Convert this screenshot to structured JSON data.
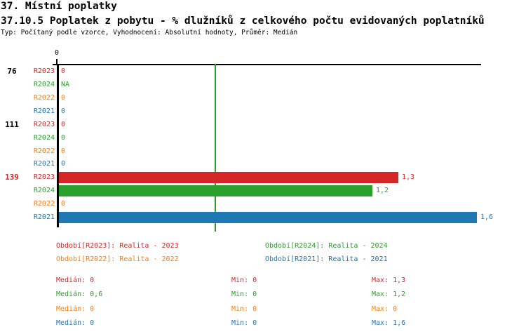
{
  "header": {
    "title1": "37. Místní poplatky",
    "title2": "37.10.5 Poplatek z pobytu - % dlužníků z celkového počtu evidovaných poplatníků",
    "meta": "Typ: Počítaný podle vzorce, Vyhodnocení: Absolutní hodnoty, Průměr: Medián"
  },
  "chart_data": {
    "type": "bar",
    "orientation": "horizontal",
    "title": "37.10.5 Poplatek z pobytu - % dlužníků z celkového počtu evidovaných poplatníků",
    "groups": [
      "76",
      "111",
      "139"
    ],
    "highlighted_group": "139",
    "highlight_color": "#d62728",
    "group_label_color": "#000000",
    "series": [
      {
        "name": "R2023",
        "color": "#d62728",
        "values": [
          0,
          0,
          1.3
        ],
        "value_labels": [
          "0",
          "0",
          "1,3"
        ]
      },
      {
        "name": "R2024",
        "color": "#2ca02c",
        "values": [
          null,
          0,
          1.2
        ],
        "value_labels": [
          "NA",
          "0",
          "1,2"
        ]
      },
      {
        "name": "R2022",
        "color": "#ff7f0e",
        "values": [
          0,
          0,
          0
        ],
        "value_labels": [
          "0",
          "0",
          "0"
        ]
      },
      {
        "name": "R2021",
        "color": "#1f77b4",
        "values": [
          0,
          0,
          1.6
        ],
        "value_labels": [
          "0",
          "0",
          "1,6"
        ]
      }
    ],
    "x_axis": {
      "tick_labels": [
        "0"
      ],
      "range": [
        0,
        1.62
      ],
      "grid": false
    },
    "median_line": {
      "value": 0.6,
      "color": "#2ca02c"
    },
    "legend_position": "bottom"
  },
  "legend": {
    "entries": [
      {
        "label": "Období[R2023]: Realita - 2023",
        "color": "#d62728"
      },
      {
        "label": "Období[R2024]: Realita - 2024",
        "color": "#2ca02c"
      },
      {
        "label": "Období[R2022]: Realita - 2022",
        "color": "#ff7f0e"
      },
      {
        "label": "Období[R2021]: Realita - 2021",
        "color": "#1f77b4"
      }
    ]
  },
  "stats": {
    "labels": {
      "median": "Medián",
      "min": "Min",
      "max": "Max"
    },
    "rows": [
      {
        "color": "#d62728",
        "median": "0",
        "min": "0",
        "max": "1,3"
      },
      {
        "color": "#2ca02c",
        "median": "0,6",
        "min": "0",
        "max": "1,2"
      },
      {
        "color": "#ff7f0e",
        "median": "0",
        "min": "0",
        "max": "0"
      },
      {
        "color": "#1f77b4",
        "median": "0",
        "min": "0",
        "max": "1,6"
      }
    ]
  }
}
